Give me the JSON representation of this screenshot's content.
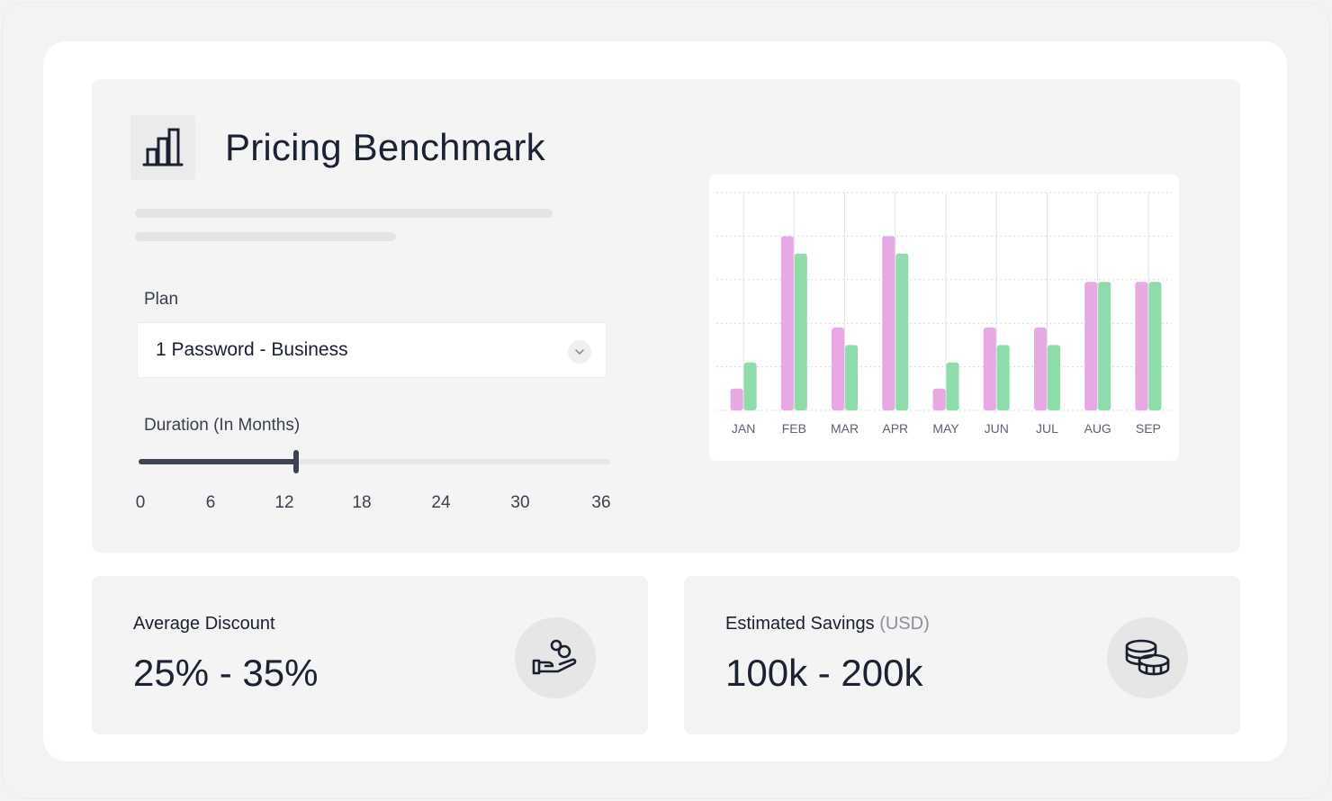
{
  "header": {
    "title": "Pricing Benchmark",
    "icon": "bar-chart-icon"
  },
  "plan": {
    "label": "Plan",
    "value": "1 Password - Business",
    "icon": "chevron-down-icon"
  },
  "duration": {
    "label": "Duration (In Months)",
    "ticks": [
      "0",
      "6",
      "12",
      "18",
      "24",
      "30",
      "36"
    ],
    "min": 0,
    "max": 36,
    "value": 12
  },
  "chart_data": {
    "type": "bar",
    "categories": [
      "JAN",
      "FEB",
      "MAR",
      "APR",
      "MAY",
      "JUN",
      "JUL",
      "AUG",
      "SEP"
    ],
    "series": [
      {
        "values": [
          0.5,
          4,
          1.9,
          4,
          0.5,
          1.9,
          1.9,
          2.95,
          2.95
        ],
        "color": "#e7a9e3"
      },
      {
        "values": [
          1.1,
          3.6,
          1.5,
          3.6,
          1.1,
          1.5,
          1.5,
          2.95,
          2.95
        ],
        "color": "#8edca9"
      }
    ],
    "ylim": [
      0,
      5
    ],
    "grid": true,
    "title": "",
    "xlabel": "",
    "ylabel": ""
  },
  "stats": {
    "discount": {
      "label": "Average Discount",
      "value": "25% - 35%",
      "icon": "hand-coins-icon"
    },
    "savings": {
      "label": "Estimated Savings",
      "unit": "(USD)",
      "value": "100k - 200k",
      "icon": "coins-stack-icon"
    }
  }
}
